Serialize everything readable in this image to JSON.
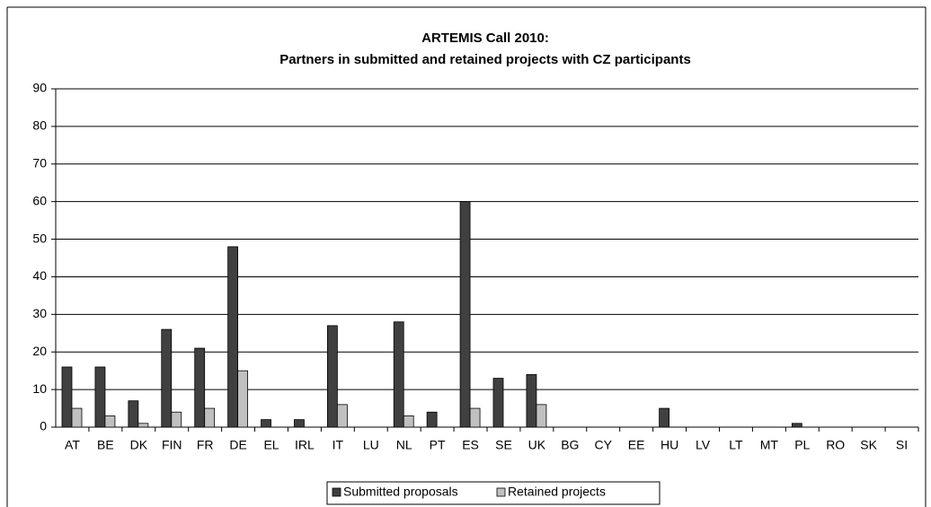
{
  "chart_data": {
    "type": "bar",
    "title": "ARTEMIS Call 2010:",
    "subtitle": "Partners in submitted and retained projects with CZ participants",
    "categories": [
      "AT",
      "BE",
      "DK",
      "FIN",
      "FR",
      "DE",
      "EL",
      "IRL",
      "IT",
      "LU",
      "NL",
      "PT",
      "ES",
      "SE",
      "UK",
      "BG",
      "CY",
      "EE",
      "HU",
      "LV",
      "LT",
      "MT",
      "PL",
      "RO",
      "SK",
      "SI"
    ],
    "series": [
      {
        "name": "Submitted proposals",
        "color": "#404040",
        "values": [
          16,
          16,
          7,
          26,
          21,
          48,
          2,
          2,
          27,
          0,
          28,
          4,
          60,
          13,
          14,
          0,
          0,
          0,
          5,
          0,
          0,
          0,
          1,
          0,
          0,
          0
        ]
      },
      {
        "name": "Retained projects",
        "color": "#c0c0c0",
        "values": [
          5,
          3,
          1,
          4,
          5,
          15,
          0,
          0,
          6,
          0,
          3,
          0,
          5,
          0,
          6,
          0,
          0,
          0,
          0,
          0,
          0,
          0,
          0,
          0,
          0,
          0
        ]
      }
    ],
    "ylim": [
      0,
      90
    ],
    "yticks": [
      0,
      10,
      20,
      30,
      40,
      50,
      60,
      70,
      80,
      90
    ],
    "grid": true,
    "legend": "bottom"
  }
}
